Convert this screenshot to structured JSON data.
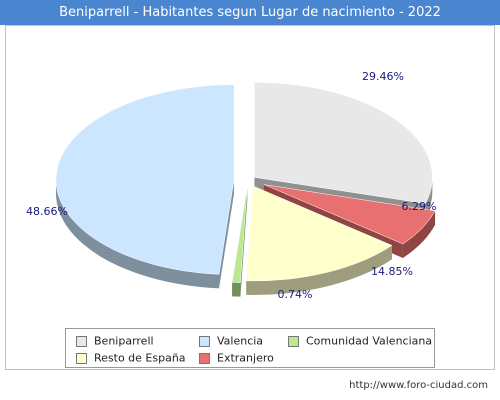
{
  "chart_data": {
    "type": "pie",
    "title": "Beniparrell - Habitantes segun Lugar de nacimiento - 2022",
    "slices": [
      {
        "name": "Beniparrell",
        "value": 29.46,
        "label": "29.46%",
        "color": "#e8e8e8"
      },
      {
        "name": "Extranjero",
        "value": 6.29,
        "label": "6.29%",
        "color": "#e87070"
      },
      {
        "name": "Resto de España",
        "value": 14.85,
        "label": "14.85%",
        "color": "#ffffcc"
      },
      {
        "name": "Comunidad Valenciana",
        "value": 0.74,
        "label": "0.74%",
        "color": "#bbe890"
      },
      {
        "name": "Valencia",
        "value": 48.66,
        "label": "48.66%",
        "color": "#cce6ff"
      }
    ],
    "legend": {
      "placement": "bottom",
      "entries": [
        "Beniparrell",
        "Valencia",
        "Comunidad Valenciana",
        "Resto de España",
        "Extranjero"
      ]
    }
  },
  "footer": {
    "url": "http://www.foro-ciudad.com"
  },
  "colors": {
    "title_bar": "#4a86d0",
    "label_text": "#1a1a80"
  }
}
